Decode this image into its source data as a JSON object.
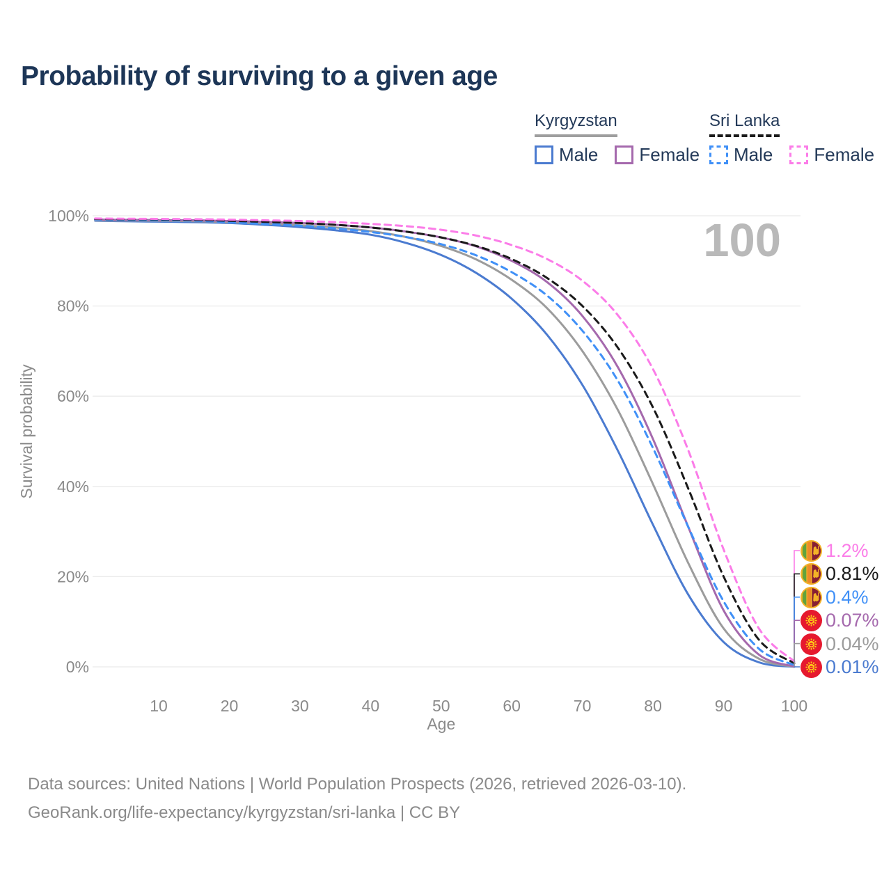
{
  "title": "Probability of surviving to a given age",
  "watermark": "100",
  "legend": {
    "groups": [
      {
        "name": "Kyrgyzstan",
        "line_style": "solid",
        "line_color": "#9e9e9e",
        "items": [
          {
            "label": "Male",
            "color": "#4b7bd0",
            "dash": false
          },
          {
            "label": "Female",
            "color": "#a569ad",
            "dash": false
          }
        ]
      },
      {
        "name": "Sri Lanka",
        "line_style": "dashed",
        "line_color": "#1a1a1a",
        "items": [
          {
            "label": "Male",
            "color": "#4090f7",
            "dash": true
          },
          {
            "label": "Female",
            "color": "#fb7ce8",
            "dash": true
          }
        ]
      }
    ]
  },
  "axes": {
    "xlabel": "Age",
    "ylabel": "Survival probability",
    "x_ticks": [
      10,
      20,
      30,
      40,
      50,
      60,
      70,
      80,
      90,
      100
    ],
    "y_ticks": [
      {
        "label": "0%",
        "value": 0
      },
      {
        "label": "20%",
        "value": 20
      },
      {
        "label": "40%",
        "value": 40
      },
      {
        "label": "60%",
        "value": 60
      },
      {
        "label": "80%",
        "value": 80
      },
      {
        "label": "100%",
        "value": 100
      }
    ],
    "x_range": [
      0,
      100
    ],
    "y_range": [
      0,
      100
    ],
    "grid": "horizontal"
  },
  "chart_data": {
    "type": "line",
    "x": [
      1,
      5,
      10,
      15,
      20,
      25,
      30,
      35,
      40,
      45,
      50,
      55,
      60,
      65,
      70,
      75,
      80,
      85,
      90,
      95,
      100
    ],
    "series": [
      {
        "name": "Sri Lanka Female",
        "country": "Sri Lanka",
        "sex": "Female",
        "color": "#fb7ce8",
        "dash": true,
        "flag": "lk",
        "values": [
          99.4,
          99.35,
          99.3,
          99.25,
          99.15,
          99.0,
          98.85,
          98.6,
          98.2,
          97.7,
          96.9,
          95.6,
          93.5,
          90.4,
          85.6,
          78.0,
          66.0,
          48.0,
          26.0,
          8.5,
          1.2
        ],
        "end_label": {
          "text": "1.2%",
          "color": "#fb7ce8"
        }
      },
      {
        "name": "Sri Lanka Both sexes",
        "country": "Sri Lanka",
        "sex": "Both",
        "color": "#1a1a1a",
        "dash": true,
        "flag": "lk",
        "values": [
          99.3,
          99.25,
          99.2,
          99.1,
          98.9,
          98.65,
          98.4,
          98.0,
          97.4,
          96.5,
          95.2,
          93.3,
          90.4,
          86.2,
          80.0,
          70.8,
          57.5,
          39.5,
          20.0,
          6.0,
          0.81
        ],
        "end_label": {
          "text": "0.81%",
          "color": "#1a1a1a"
        }
      },
      {
        "name": "Sri Lanka Male",
        "country": "Sri Lanka",
        "sex": "Male",
        "color": "#4090f7",
        "dash": true,
        "flag": "lk",
        "values": [
          99.2,
          99.1,
          99.0,
          98.9,
          98.6,
          98.2,
          97.8,
          97.2,
          96.4,
          95.3,
          93.7,
          91.2,
          87.5,
          82.3,
          74.5,
          63.5,
          48.5,
          31.0,
          14.5,
          4.0,
          0.4
        ],
        "end_label": {
          "text": "0.4%",
          "color": "#4090f7"
        }
      },
      {
        "name": "Kyrgyzstan Female",
        "country": "Kyrgyzstan",
        "sex": "Female",
        "color": "#a569ad",
        "dash": false,
        "flag": "kg",
        "values": [
          99.2,
          99.1,
          99.05,
          99.0,
          98.85,
          98.65,
          98.4,
          98.0,
          97.4,
          96.5,
          95.2,
          93.2,
          90.0,
          85.3,
          77.8,
          66.5,
          50.5,
          31.0,
          12.5,
          2.7,
          0.07
        ],
        "end_label": {
          "text": "0.07%",
          "color": "#a569ad"
        }
      },
      {
        "name": "Kyrgyzstan Both sexes",
        "country": "Kyrgyzstan",
        "sex": "Both",
        "color": "#9c9c9c",
        "dash": false,
        "flag": "kg",
        "values": [
          99.0,
          98.95,
          98.9,
          98.8,
          98.6,
          98.3,
          97.9,
          97.4,
          96.6,
          95.3,
          93.3,
          90.3,
          85.8,
          79.5,
          70.0,
          57.0,
          40.5,
          23.0,
          8.5,
          1.8,
          0.04
        ],
        "end_label": {
          "text": "0.04%",
          "color": "#9c9c9c"
        }
      },
      {
        "name": "Kyrgyzstan Male",
        "country": "Kyrgyzstan",
        "sex": "Male",
        "color": "#4b7bd0",
        "dash": false,
        "flag": "kg",
        "values": [
          98.9,
          98.8,
          98.7,
          98.6,
          98.4,
          98.0,
          97.5,
          96.8,
          95.8,
          94.0,
          91.3,
          87.3,
          81.6,
          73.6,
          62.5,
          48.0,
          31.5,
          16.0,
          5.5,
          1.0,
          0.01
        ],
        "end_label": {
          "text": "0.01%",
          "color": "#4b7bd0"
        }
      }
    ]
  },
  "footer": {
    "line1": "Data sources: United Nations | World Population Prospects (2026, retrieved 2026-03-10).",
    "line2": "GeoRank.org/life-expectancy/kyrgyzstan/sri-lanka | CC BY"
  },
  "colors": {
    "title": "#1d3657",
    "axis_text": "#8a8a8a",
    "gridline": "#ebebeb",
    "watermark": "#b9b9b9",
    "legend_text": "#243a59"
  }
}
